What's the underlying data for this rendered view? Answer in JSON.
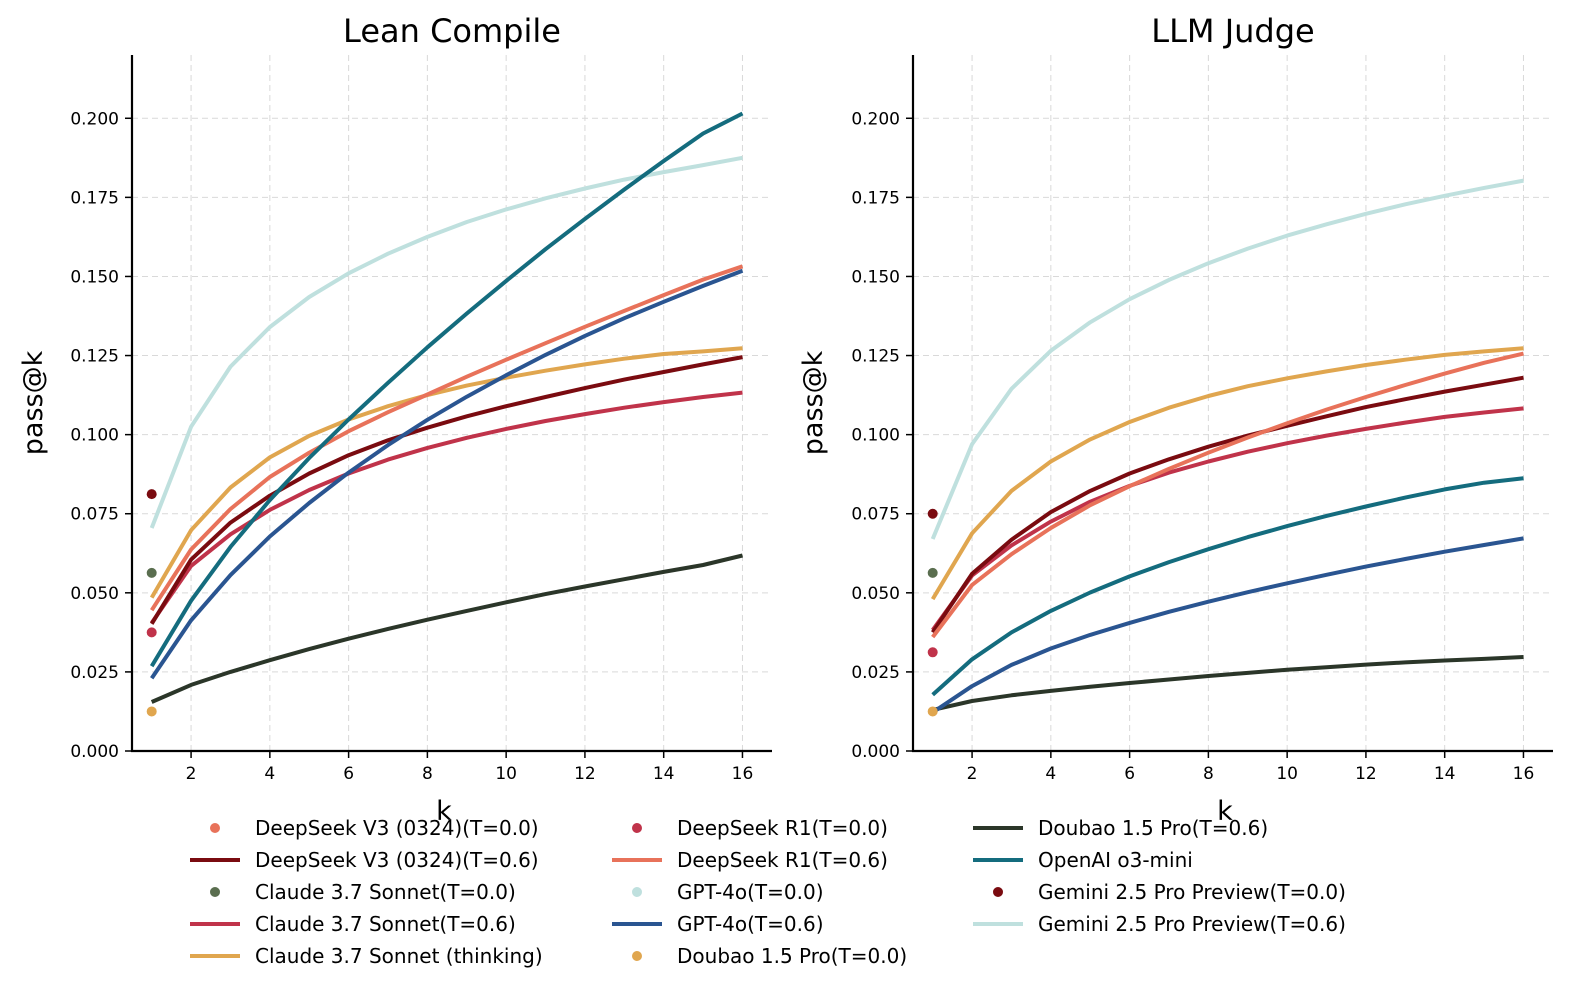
{
  "colors": {
    "deepseek_v3": "#e8725a",
    "deepseek_v3_t06": "#7a0b10",
    "claude_t00": "#5a6e4f",
    "claude_t06": "#c0334a",
    "claude_thinking": "#e0a64f",
    "deepseek_r1_t00": "#c0334a",
    "deepseek_r1_t06": "#e8725a",
    "gpt4o_t00": "#bfe0de",
    "gpt4o_t06": "#2a5591",
    "doubao_t00": "#e0a64f",
    "doubao_t06": "#2b3629",
    "o3mini": "#146c7e",
    "gemini_t00": "#7a0b10",
    "gemini_t06": "#bfe0de"
  },
  "legend": [
    {
      "label": "DeepSeek V3 (0324)(T=0.0)",
      "kind": "dot",
      "color_key": "deepseek_v3"
    },
    {
      "label": "DeepSeek V3 (0324)(T=0.6)",
      "kind": "line",
      "color_key": "deepseek_v3_t06"
    },
    {
      "label": "Claude 3.7 Sonnet(T=0.0)",
      "kind": "dot",
      "color_key": "claude_t00"
    },
    {
      "label": "Claude 3.7 Sonnet(T=0.6)",
      "kind": "line",
      "color_key": "claude_t06"
    },
    {
      "label": "Claude 3.7 Sonnet (thinking)",
      "kind": "line",
      "color_key": "claude_thinking"
    },
    {
      "label": "DeepSeek R1(T=0.0)",
      "kind": "dot",
      "color_key": "deepseek_r1_t00"
    },
    {
      "label": "DeepSeek R1(T=0.6)",
      "kind": "line",
      "color_key": "deepseek_r1_t06"
    },
    {
      "label": "GPT-4o(T=0.0)",
      "kind": "dot",
      "color_key": "gpt4o_t00"
    },
    {
      "label": "GPT-4o(T=0.6)",
      "kind": "line",
      "color_key": "gpt4o_t06"
    },
    {
      "label": "Doubao 1.5 Pro(T=0.0)",
      "kind": "dot",
      "color_key": "doubao_t00"
    },
    {
      "label": "Doubao 1.5 Pro(T=0.6)",
      "kind": "line",
      "color_key": "doubao_t06"
    },
    {
      "label": "OpenAI o3-mini",
      "kind": "line",
      "color_key": "o3mini"
    },
    {
      "label": "Gemini 2.5 Pro Preview(T=0.0)",
      "kind": "dot",
      "color_key": "gemini_t00"
    },
    {
      "label": "Gemini 2.5 Pro Preview(T=0.6)",
      "kind": "line",
      "color_key": "gemini_t06"
    }
  ],
  "chart_data": [
    {
      "type": "line",
      "title": "Lean Compile",
      "xlabel": "k",
      "ylabel": "pass@k",
      "xlim": [
        0.5,
        16.75
      ],
      "ylim": [
        0,
        0.22
      ],
      "xticks": [
        2,
        4,
        6,
        8,
        10,
        12,
        14,
        16
      ],
      "xtick_labels": [
        "2",
        "4",
        "6",
        "8",
        "10",
        "12",
        "14",
        "16"
      ],
      "yticks": [
        0,
        0.025,
        0.05,
        0.075,
        0.1,
        0.125,
        0.15,
        0.175,
        0.2
      ],
      "ytick_labels": [
        "0.000",
        "0.025",
        "0.050",
        "0.075",
        "0.100",
        "0.125",
        "0.150",
        "0.175",
        "0.200"
      ],
      "grid": true,
      "x": [
        1,
        2,
        3,
        4,
        5,
        6,
        7,
        8,
        9,
        10,
        11,
        12,
        13,
        14,
        15,
        16
      ],
      "series": [
        {
          "name": "Gemini 2.5 Pro Preview(T=0.6)",
          "color_key": "gemini_t06",
          "values": [
            0.0705,
            0.1025,
            0.1215,
            0.134,
            0.1435,
            0.151,
            0.1572,
            0.1625,
            0.1672,
            0.1712,
            0.1747,
            0.1778,
            0.1806,
            0.183,
            0.1852,
            0.1875
          ]
        },
        {
          "name": "Doubao 1.5 Pro(T=0.6)",
          "color_key": "doubao_t06",
          "values": [
            0.0155,
            0.0209,
            0.025,
            0.0287,
            0.0322,
            0.0355,
            0.0386,
            0.0415,
            0.0443,
            0.047,
            0.0496,
            0.052,
            0.0543,
            0.0566,
            0.0588,
            0.0618
          ]
        },
        {
          "name": "Claude 3.7 Sonnet(T=0.6)",
          "color_key": "claude_t06",
          "values": [
            0.0405,
            0.0585,
            0.0685,
            0.0762,
            0.0825,
            0.0877,
            0.0921,
            0.0958,
            0.099,
            0.1018,
            0.1043,
            0.1065,
            0.1085,
            0.1103,
            0.1119,
            0.1133
          ]
        },
        {
          "name": "DeepSeek V3 (0324)(T=0.6)",
          "color_key": "deepseek_v3_t06",
          "values": [
            0.0402,
            0.0605,
            0.0722,
            0.0807,
            0.0877,
            0.0935,
            0.0982,
            0.1022,
            0.1058,
            0.109,
            0.1119,
            0.1147,
            0.1174,
            0.1198,
            0.1222,
            0.1245
          ]
        },
        {
          "name": "Claude 3.7 Sonnet (thinking)",
          "color_key": "claude_thinking",
          "values": [
            0.0485,
            0.0698,
            0.0833,
            0.0928,
            0.0996,
            0.1048,
            0.109,
            0.1125,
            0.1155,
            0.118,
            0.1202,
            0.1222,
            0.124,
            0.1255,
            0.1263,
            0.1273
          ]
        },
        {
          "name": "DeepSeek R1(T=0.6)",
          "color_key": "deepseek_r1_t06",
          "values": [
            0.0445,
            0.0637,
            0.0765,
            0.0866,
            0.0943,
            0.1011,
            0.1071,
            0.1127,
            0.1183,
            0.1237,
            0.1289,
            0.1341,
            0.1391,
            0.1441,
            0.149,
            0.1532
          ]
        },
        {
          "name": "GPT-4o(T=0.6)",
          "color_key": "gpt4o_t06",
          "values": [
            0.023,
            0.0413,
            0.0556,
            0.0678,
            0.0784,
            0.088,
            0.0967,
            0.1047,
            0.112,
            0.1188,
            0.1252,
            0.1312,
            0.1368,
            0.142,
            0.147,
            0.1518
          ]
        },
        {
          "name": "OpenAI o3-mini",
          "color_key": "o3mini",
          "values": [
            0.0268,
            0.0475,
            0.0645,
            0.0793,
            0.0926,
            0.1048,
            0.1164,
            0.1276,
            0.1383,
            0.1486,
            0.1586,
            0.1682,
            0.1775,
            0.1865,
            0.1952,
            0.2015
          ]
        }
      ],
      "points": [
        {
          "name": "Gemini 2.5 Pro Preview(T=0.0)",
          "color_key": "gemini_t00",
          "x": 1,
          "y": 0.0812
        },
        {
          "name": "Claude 3.7 Sonnet(T=0.0)",
          "color_key": "claude_t00",
          "x": 1,
          "y": 0.0563
        },
        {
          "name": "DeepSeek R1(T=0.0)",
          "color_key": "deepseek_r1_t00",
          "x": 1,
          "y": 0.0375
        },
        {
          "name": "Doubao 1.5 Pro(T=0.0)",
          "color_key": "doubao_t00",
          "x": 1,
          "y": 0.0125
        }
      ]
    },
    {
      "type": "line",
      "title": "LLM Judge",
      "xlabel": "k",
      "ylabel": "pass@k",
      "xlim": [
        0.5,
        16.75
      ],
      "ylim": [
        0,
        0.22
      ],
      "xticks": [
        2,
        4,
        6,
        8,
        10,
        12,
        14,
        16
      ],
      "xtick_labels": [
        "2",
        "4",
        "6",
        "8",
        "10",
        "12",
        "14",
        "16"
      ],
      "yticks": [
        0,
        0.025,
        0.05,
        0.075,
        0.1,
        0.125,
        0.15,
        0.175,
        0.2
      ],
      "ytick_labels": [
        "0.000",
        "0.025",
        "0.050",
        "0.075",
        "0.100",
        "0.125",
        "0.150",
        "0.175",
        "0.200"
      ],
      "grid": true,
      "x": [
        1,
        2,
        3,
        4,
        5,
        6,
        7,
        8,
        9,
        10,
        11,
        12,
        13,
        14,
        15,
        16
      ],
      "series": [
        {
          "name": "Gemini 2.5 Pro Preview(T=0.6)",
          "color_key": "gemini_t06",
          "values": [
            0.067,
            0.097,
            0.1145,
            0.1265,
            0.1355,
            0.1428,
            0.1489,
            0.1542,
            0.1588,
            0.1629,
            0.1665,
            0.1698,
            0.1728,
            0.1755,
            0.178,
            0.1803
          ]
        },
        {
          "name": "Doubao 1.5 Pro(T=0.6)",
          "color_key": "doubao_t06",
          "values": [
            0.013,
            0.0158,
            0.0176,
            0.019,
            0.0203,
            0.0215,
            0.0226,
            0.0237,
            0.0247,
            0.0257,
            0.0265,
            0.0273,
            0.028,
            0.0286,
            0.0291,
            0.0297
          ]
        },
        {
          "name": "GPT-4o(T=0.6)",
          "color_key": "gpt4o_t06",
          "values": [
            0.0122,
            0.0205,
            0.0272,
            0.0324,
            0.0367,
            0.0405,
            0.044,
            0.0472,
            0.0502,
            0.053,
            0.0557,
            0.0583,
            0.0607,
            0.063,
            0.0651,
            0.0672
          ]
        },
        {
          "name": "OpenAI o3-mini",
          "color_key": "o3mini",
          "values": [
            0.0178,
            0.029,
            0.0375,
            0.0443,
            0.0501,
            0.0552,
            0.0597,
            0.0638,
            0.0676,
            0.0711,
            0.0743,
            0.0773,
            0.0801,
            0.0827,
            0.0848,
            0.0862
          ]
        },
        {
          "name": "Claude 3.7 Sonnet(T=0.6)",
          "color_key": "claude_t06",
          "values": [
            0.0382,
            0.0555,
            0.065,
            0.0725,
            0.0788,
            0.0838,
            0.088,
            0.0915,
            0.0946,
            0.0973,
            0.0997,
            0.1018,
            0.1038,
            0.1056,
            0.107,
            0.1083
          ]
        },
        {
          "name": "DeepSeek V3 (0324)(T=0.6)",
          "color_key": "deepseek_v3_t06",
          "values": [
            0.0375,
            0.056,
            0.0668,
            0.0755,
            0.0822,
            0.0877,
            0.0922,
            0.0962,
            0.0997,
            0.1028,
            0.1058,
            0.1087,
            0.1112,
            0.1136,
            0.1158,
            0.118
          ]
        },
        {
          "name": "DeepSeek R1(T=0.6)",
          "color_key": "deepseek_r1_t06",
          "values": [
            0.036,
            0.0525,
            0.0622,
            0.0705,
            0.0777,
            0.0837,
            0.0892,
            0.0943,
            0.0991,
            0.1036,
            0.1079,
            0.1119,
            0.1157,
            0.1193,
            0.1227,
            0.1256
          ]
        },
        {
          "name": "Claude 3.7 Sonnet (thinking)",
          "color_key": "claude_thinking",
          "values": [
            0.048,
            0.0688,
            0.0822,
            0.0915,
            0.0985,
            0.104,
            0.1085,
            0.1122,
            0.1153,
            0.1178,
            0.12,
            0.122,
            0.1237,
            0.1252,
            0.1263,
            0.1273
          ]
        }
      ],
      "points": [
        {
          "name": "Gemini 2.5 Pro Preview(T=0.0)",
          "color_key": "gemini_t00",
          "x": 1,
          "y": 0.075
        },
        {
          "name": "Claude 3.7 Sonnet(T=0.0)",
          "color_key": "claude_t00",
          "x": 1,
          "y": 0.0563
        },
        {
          "name": "DeepSeek R1(T=0.0)",
          "color_key": "deepseek_r1_t00",
          "x": 1,
          "y": 0.0312
        },
        {
          "name": "Doubao 1.5 Pro(T=0.0)",
          "color_key": "doubao_t00",
          "x": 1,
          "y": 0.0125
        }
      ]
    }
  ]
}
